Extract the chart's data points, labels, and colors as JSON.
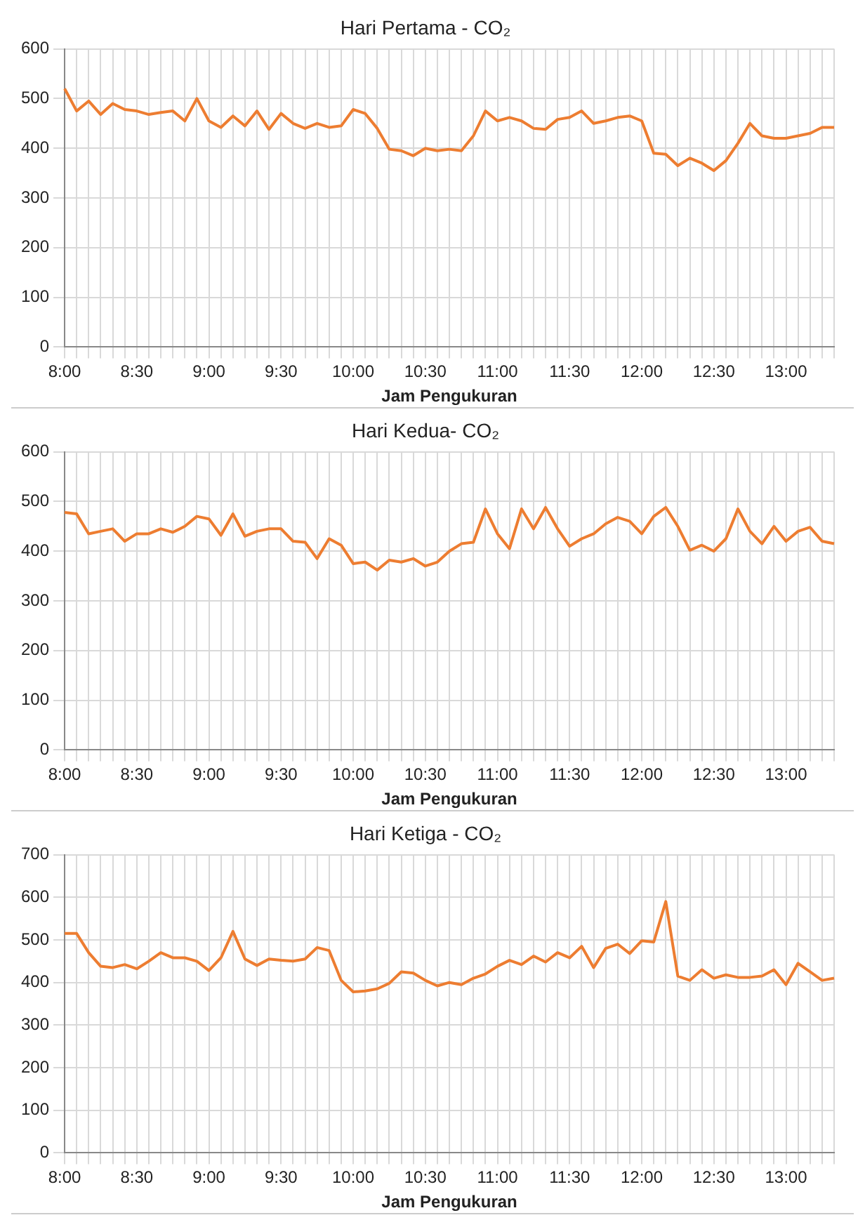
{
  "chart_data": [
    {
      "type": "line",
      "title": "Hari Pertama - CO₂",
      "xlabel": "Jam Pengukuran",
      "categories": [
        "8:00",
        null,
        null,
        null,
        null,
        null,
        "8:30",
        null,
        null,
        null,
        null,
        null,
        "9:00",
        null,
        null,
        null,
        null,
        null,
        "9:30",
        null,
        null,
        null,
        null,
        null,
        "10:00",
        null,
        null,
        null,
        null,
        null,
        "10:30",
        null,
        null,
        null,
        null,
        null,
        "11:00",
        null,
        null,
        null,
        null,
        null,
        "11:30",
        null,
        null,
        null,
        null,
        null,
        "12:00",
        null,
        null,
        null,
        null,
        null,
        "12:30",
        null,
        null,
        null,
        null,
        null,
        "13:00",
        null,
        null,
        null,
        null
      ],
      "series": [
        {
          "color": "#ed7d31",
          "values": [
            520,
            475,
            495,
            468,
            490,
            478,
            475,
            468,
            472,
            475,
            455,
            500,
            455,
            442,
            465,
            445,
            475,
            438,
            470,
            450,
            440,
            450,
            442,
            445,
            478,
            470,
            440,
            398,
            395,
            385,
            400,
            395,
            398,
            395,
            425,
            475,
            455,
            462,
            455,
            440,
            438,
            458,
            462,
            475,
            450,
            455,
            462,
            465,
            455,
            390,
            388,
            365,
            380,
            370,
            355,
            375,
            410,
            450,
            425,
            420,
            420,
            425,
            430,
            442,
            442
          ]
        }
      ],
      "ylim": [
        0,
        600
      ],
      "yticks": [
        0,
        100,
        200,
        300,
        400,
        500,
        600
      ],
      "grid": true,
      "legend": false,
      "marker": "none",
      "line_style": "solid"
    },
    {
      "type": "line",
      "title": "Hari Kedua- CO₂",
      "xlabel": "Jam Pengukuran",
      "categories": [
        "8:00",
        null,
        null,
        null,
        null,
        null,
        "8:30",
        null,
        null,
        null,
        null,
        null,
        "9:00",
        null,
        null,
        null,
        null,
        null,
        "9:30",
        null,
        null,
        null,
        null,
        null,
        "10:00",
        null,
        null,
        null,
        null,
        null,
        "10:30",
        null,
        null,
        null,
        null,
        null,
        "11:00",
        null,
        null,
        null,
        null,
        null,
        "11:30",
        null,
        null,
        null,
        null,
        null,
        "12:00",
        null,
        null,
        null,
        null,
        null,
        "12:30",
        null,
        null,
        null,
        null,
        null,
        "13:00",
        null,
        null,
        null,
        null
      ],
      "series": [
        {
          "color": "#ed7d31",
          "values": [
            478,
            475,
            435,
            440,
            445,
            420,
            435,
            435,
            445,
            438,
            450,
            470,
            465,
            432,
            475,
            430,
            440,
            445,
            445,
            420,
            418,
            385,
            425,
            412,
            375,
            378,
            362,
            382,
            378,
            385,
            370,
            378,
            400,
            415,
            418,
            485,
            435,
            405,
            485,
            445,
            488,
            445,
            410,
            425,
            435,
            455,
            468,
            460,
            435,
            470,
            488,
            450,
            402,
            412,
            400,
            425,
            485,
            440,
            415,
            450,
            420,
            440,
            448,
            420,
            415
          ]
        }
      ],
      "ylim": [
        0,
        600
      ],
      "yticks": [
        0,
        100,
        200,
        300,
        400,
        500,
        600
      ],
      "grid": true,
      "legend": false,
      "marker": "none",
      "line_style": "solid"
    },
    {
      "type": "line",
      "title": "Hari Ketiga - CO₂",
      "xlabel": "Jam Pengukuran",
      "categories": [
        "8:00",
        null,
        null,
        null,
        null,
        null,
        "8:30",
        null,
        null,
        null,
        null,
        null,
        "9:00",
        null,
        null,
        null,
        null,
        null,
        "9:30",
        null,
        null,
        null,
        null,
        null,
        "10:00",
        null,
        null,
        null,
        null,
        null,
        "10:30",
        null,
        null,
        null,
        null,
        null,
        "11:00",
        null,
        null,
        null,
        null,
        null,
        "11:30",
        null,
        null,
        null,
        null,
        null,
        "12:00",
        null,
        null,
        null,
        null,
        null,
        "12:30",
        null,
        null,
        null,
        null,
        null,
        "13:00",
        null,
        null,
        null,
        null
      ],
      "series": [
        {
          "color": "#ed7d31",
          "values": [
            515,
            515,
            470,
            438,
            435,
            442,
            432,
            450,
            470,
            458,
            458,
            450,
            428,
            458,
            520,
            455,
            440,
            455,
            452,
            450,
            455,
            482,
            475,
            405,
            378,
            380,
            385,
            398,
            425,
            422,
            405,
            392,
            400,
            395,
            410,
            420,
            438,
            452,
            442,
            462,
            448,
            470,
            458,
            485,
            435,
            480,
            490,
            468,
            498,
            495,
            590,
            415,
            405,
            430,
            410,
            418,
            412,
            412,
            415,
            430,
            395,
            445,
            425,
            405,
            410
          ]
        }
      ],
      "ylim": [
        0,
        700
      ],
      "yticks": [
        0,
        100,
        200,
        300,
        400,
        500,
        600,
        700
      ],
      "grid": true,
      "legend": false,
      "marker": "none",
      "line_style": "solid"
    }
  ]
}
